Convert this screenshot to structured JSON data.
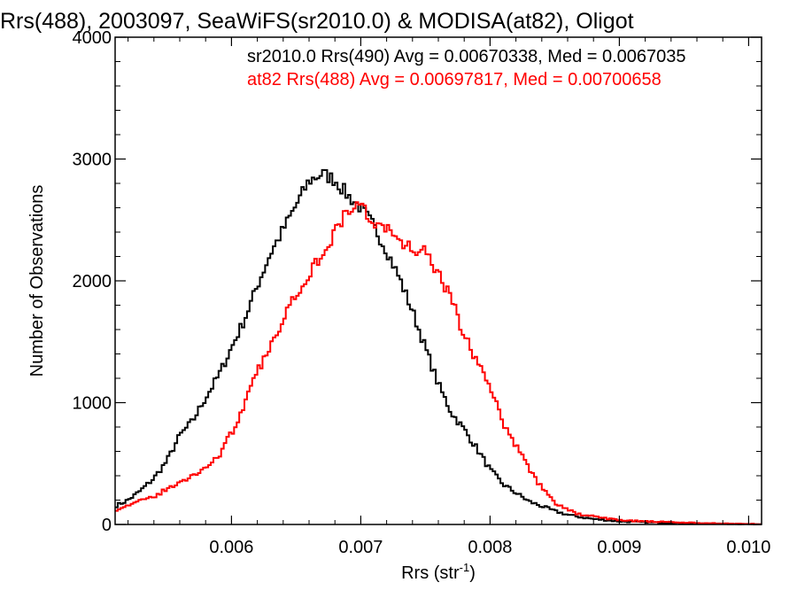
{
  "chart_data": {
    "type": "line",
    "title": "Rrs(488), 2003097, SeaWiFS(sr2010.0) & MODISA(at82), Oligot",
    "xlabel": "Rrs (str",
    "xlabel_sup": "-1",
    "xlabel_close": ")",
    "ylabel": "Number of Observations",
    "xlim": [
      0.0051,
      0.0101
    ],
    "ylim": [
      0,
      4000
    ],
    "xticks": [
      {
        "value": 0.006,
        "label": "0.006"
      },
      {
        "value": 0.007,
        "label": "0.007"
      },
      {
        "value": 0.008,
        "label": "0.008"
      },
      {
        "value": 0.009,
        "label": "0.009"
      },
      {
        "value": 0.01,
        "label": "0.010"
      }
    ],
    "yticks": [
      {
        "value": 0,
        "label": "0"
      },
      {
        "value": 1000,
        "label": "1000"
      },
      {
        "value": 2000,
        "label": "2000"
      },
      {
        "value": 3000,
        "label": "3000"
      },
      {
        "value": 4000,
        "label": "4000"
      }
    ],
    "legend_placement": "top-right",
    "series": [
      {
        "name": "sr2010.0 Rrs(490) Avg = 0.00670338, Med = 0.0067035",
        "color": "#000000",
        "x": [
          0.0051,
          0.0052,
          0.0053,
          0.0054,
          0.0055,
          0.0056,
          0.0057,
          0.0058,
          0.0059,
          0.006,
          0.0061,
          0.0062,
          0.0063,
          0.0064,
          0.0065,
          0.0066,
          0.0067,
          0.0068,
          0.0069,
          0.007,
          0.0071,
          0.0072,
          0.0073,
          0.0074,
          0.0075,
          0.0076,
          0.0077,
          0.0078,
          0.0079,
          0.008,
          0.0081,
          0.0082,
          0.0083,
          0.0084,
          0.0085,
          0.0086,
          0.0087,
          0.0088,
          0.0089,
          0.009,
          0.0092,
          0.0094,
          0.0096,
          0.0098,
          0.01,
          0.0101
        ],
        "y": [
          150,
          200,
          280,
          380,
          520,
          730,
          850,
          1040,
          1220,
          1450,
          1680,
          1960,
          2220,
          2420,
          2620,
          2820,
          2880,
          2830,
          2700,
          2600,
          2450,
          2250,
          2020,
          1750,
          1450,
          1150,
          920,
          780,
          620,
          450,
          330,
          260,
          190,
          150,
          110,
          80,
          60,
          45,
          35,
          25,
          18,
          12,
          8,
          5,
          3,
          2
        ]
      },
      {
        "name": "at82 Rrs(488) Avg = 0.00697817, Med = 0.00700658",
        "color": "#ff0000",
        "x": [
          0.0051,
          0.0052,
          0.0053,
          0.0054,
          0.0055,
          0.0056,
          0.0057,
          0.0058,
          0.0059,
          0.006,
          0.0061,
          0.0062,
          0.0063,
          0.0064,
          0.0065,
          0.0066,
          0.0067,
          0.0068,
          0.0069,
          0.007,
          0.0071,
          0.0072,
          0.0073,
          0.0074,
          0.0075,
          0.0076,
          0.0077,
          0.0078,
          0.0079,
          0.008,
          0.0081,
          0.0082,
          0.0083,
          0.0084,
          0.0085,
          0.0086,
          0.0087,
          0.0088,
          0.0089,
          0.009,
          0.0092,
          0.0094,
          0.0096,
          0.0098,
          0.01,
          0.0101
        ],
        "y": [
          120,
          160,
          190,
          230,
          290,
          340,
          400,
          470,
          560,
          750,
          980,
          1250,
          1450,
          1700,
          1900,
          2060,
          2220,
          2400,
          2580,
          2620,
          2480,
          2430,
          2300,
          2270,
          2230,
          2050,
          1850,
          1550,
          1340,
          1120,
          840,
          650,
          460,
          300,
          180,
          120,
          80,
          65,
          50,
          35,
          25,
          18,
          12,
          8,
          5,
          3
        ]
      }
    ]
  }
}
